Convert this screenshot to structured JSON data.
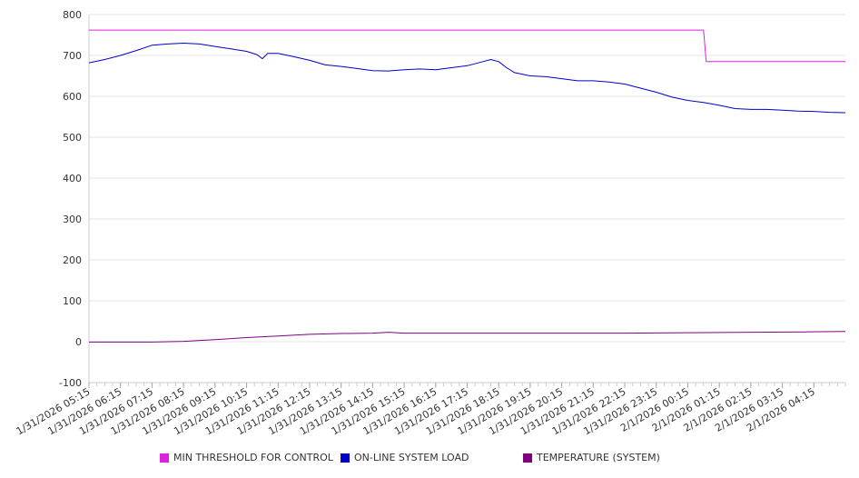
{
  "chart_data": {
    "type": "line",
    "title": "",
    "xlabel": "",
    "ylabel": "",
    "ylim": [
      -100,
      800
    ],
    "yticks": [
      800,
      700,
      600,
      500,
      400,
      300,
      200,
      100,
      0,
      -100
    ],
    "x_tick_labels": [
      "1/31/2026 05:15",
      "1/31/2026 06:15",
      "1/31/2026 07:15",
      "1/31/2026 08:15",
      "1/31/2026 09:15",
      "1/31/2026 10:15",
      "1/31/2026 11:15",
      "1/31/2026 12:15",
      "1/31/2026 13:15",
      "1/31/2026 14:15",
      "1/31/2026 15:15",
      "1/31/2026 16:15",
      "1/31/2026 17:15",
      "1/31/2026 18:15",
      "1/31/2026 19:15",
      "1/31/2026 20:15",
      "1/31/2026 21:15",
      "1/31/2026 22:15",
      "1/31/2026 23:15",
      "2/1/2026 00:15",
      "2/1/2026 01:15",
      "2/1/2026 02:15",
      "2/1/2026 03:15",
      "2/1/2026 04:15"
    ],
    "x_start": "1/31/2026 05:15",
    "x_end": "2/1/2026 05:15",
    "grid": true,
    "legend_position": "bottom",
    "series": [
      {
        "name": "MIN THRESHOLD FOR CONTROL",
        "color": "#e020e0",
        "points": [
          [
            "1/31/2026 05:15",
            762
          ],
          [
            "2/1/2026 00:45",
            762
          ],
          [
            "2/1/2026 00:50",
            685
          ],
          [
            "2/1/2026 05:15",
            685
          ]
        ]
      },
      {
        "name": "ON-LINE SYSTEM LOAD",
        "color": "#0000cc",
        "points": [
          [
            "1/31/2026 05:15",
            682
          ],
          [
            "1/31/2026 05:45",
            690
          ],
          [
            "1/31/2026 06:15",
            700
          ],
          [
            "1/31/2026 06:45",
            712
          ],
          [
            "1/31/2026 07:15",
            725
          ],
          [
            "1/31/2026 07:45",
            728
          ],
          [
            "1/31/2026 08:15",
            730
          ],
          [
            "1/31/2026 08:45",
            728
          ],
          [
            "1/31/2026 09:15",
            722
          ],
          [
            "1/31/2026 09:45",
            716
          ],
          [
            "1/31/2026 10:15",
            710
          ],
          [
            "1/31/2026 10:35",
            702
          ],
          [
            "1/31/2026 10:45",
            692
          ],
          [
            "1/31/2026 10:55",
            705
          ],
          [
            "1/31/2026 11:15",
            705
          ],
          [
            "1/31/2026 11:45",
            697
          ],
          [
            "1/31/2026 12:15",
            688
          ],
          [
            "1/31/2026 12:45",
            677
          ],
          [
            "1/31/2026 13:15",
            673
          ],
          [
            "1/31/2026 13:45",
            668
          ],
          [
            "1/31/2026 14:15",
            663
          ],
          [
            "1/31/2026 14:45",
            662
          ],
          [
            "1/31/2026 15:15",
            665
          ],
          [
            "1/31/2026 15:45",
            667
          ],
          [
            "1/31/2026 16:15",
            665
          ],
          [
            "1/31/2026 16:45",
            670
          ],
          [
            "1/31/2026 17:15",
            675
          ],
          [
            "1/31/2026 17:45",
            685
          ],
          [
            "1/31/2026 18:00",
            690
          ],
          [
            "1/31/2026 18:15",
            685
          ],
          [
            "1/31/2026 18:30",
            670
          ],
          [
            "1/31/2026 18:45",
            658
          ],
          [
            "1/31/2026 19:15",
            650
          ],
          [
            "1/31/2026 19:45",
            648
          ],
          [
            "1/31/2026 20:15",
            643
          ],
          [
            "1/31/2026 20:45",
            638
          ],
          [
            "1/31/2026 21:15",
            638
          ],
          [
            "1/31/2026 21:45",
            635
          ],
          [
            "1/31/2026 22:15",
            630
          ],
          [
            "1/31/2026 22:45",
            620
          ],
          [
            "1/31/2026 23:15",
            610
          ],
          [
            "1/31/2026 23:45",
            598
          ],
          [
            "2/1/2026 00:15",
            590
          ],
          [
            "2/1/2026 00:45",
            585
          ],
          [
            "2/1/2026 01:15",
            578
          ],
          [
            "2/1/2026 01:45",
            570
          ],
          [
            "2/1/2026 02:15",
            568
          ],
          [
            "2/1/2026 02:45",
            568
          ],
          [
            "2/1/2026 03:15",
            566
          ],
          [
            "2/1/2026 03:45",
            564
          ],
          [
            "2/1/2026 04:15",
            563
          ],
          [
            "2/1/2026 04:45",
            561
          ],
          [
            "2/1/2026 05:15",
            560
          ]
        ]
      },
      {
        "name": "TEMPERATURE (SYSTEM)",
        "color": "#800080",
        "points": [
          [
            "1/31/2026 05:15",
            -1
          ],
          [
            "1/31/2026 06:15",
            -1
          ],
          [
            "1/31/2026 07:15",
            -1
          ],
          [
            "1/31/2026 08:15",
            1
          ],
          [
            "1/31/2026 09:15",
            5
          ],
          [
            "1/31/2026 10:15",
            10
          ],
          [
            "1/31/2026 11:15",
            14
          ],
          [
            "1/31/2026 12:15",
            18
          ],
          [
            "1/31/2026 13:15",
            20
          ],
          [
            "1/31/2026 14:15",
            21
          ],
          [
            "1/31/2026 14:45",
            23
          ],
          [
            "1/31/2026 15:15",
            21
          ],
          [
            "1/31/2026 16:15",
            21
          ],
          [
            "1/31/2026 18:15",
            21
          ],
          [
            "1/31/2026 20:15",
            21
          ],
          [
            "1/31/2026 22:15",
            21
          ],
          [
            "2/1/2026 00:15",
            22
          ],
          [
            "2/1/2026 02:15",
            23
          ],
          [
            "2/1/2026 04:00",
            24
          ],
          [
            "2/1/2026 05:15",
            25
          ]
        ]
      }
    ]
  }
}
